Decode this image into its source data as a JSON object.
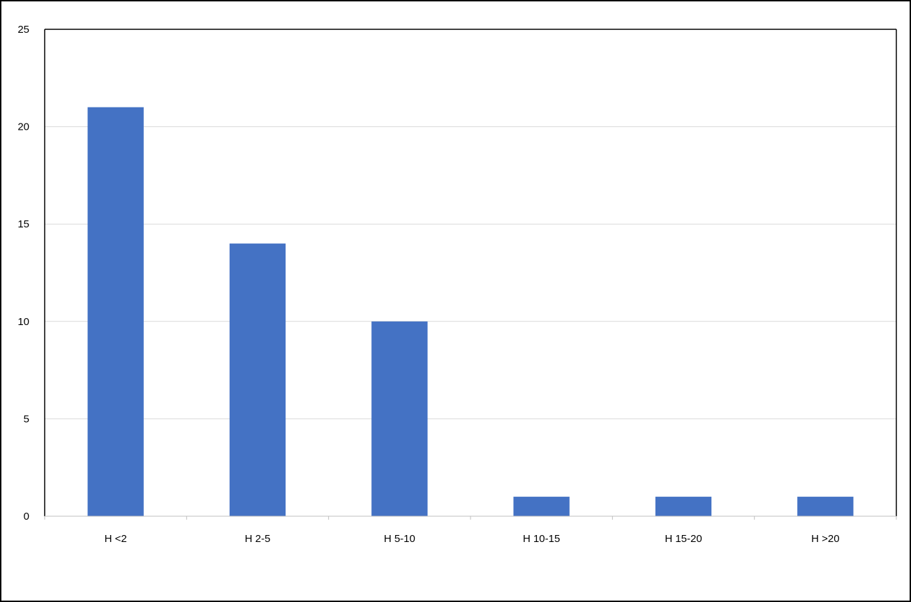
{
  "chart_data": {
    "type": "bar",
    "categories": [
      "H <2",
      "H 2-5",
      "H 5-10",
      "H 10-15",
      "H 15-20",
      "H >20"
    ],
    "series": [
      {
        "values": [
          21,
          14,
          10,
          1,
          1,
          1
        ]
      }
    ],
    "title": "",
    "xlabel": "",
    "ylabel": "",
    "ylim": [
      0,
      25
    ],
    "yticks": [
      0,
      5,
      10,
      15,
      20,
      25
    ],
    "grid": true,
    "legend": "none",
    "colors": {
      "bar": "#4472C4",
      "grid": "#D9D9D9",
      "axis": "#BFBFBF",
      "plot_border": "#000000",
      "frame_border": "#000000"
    }
  }
}
